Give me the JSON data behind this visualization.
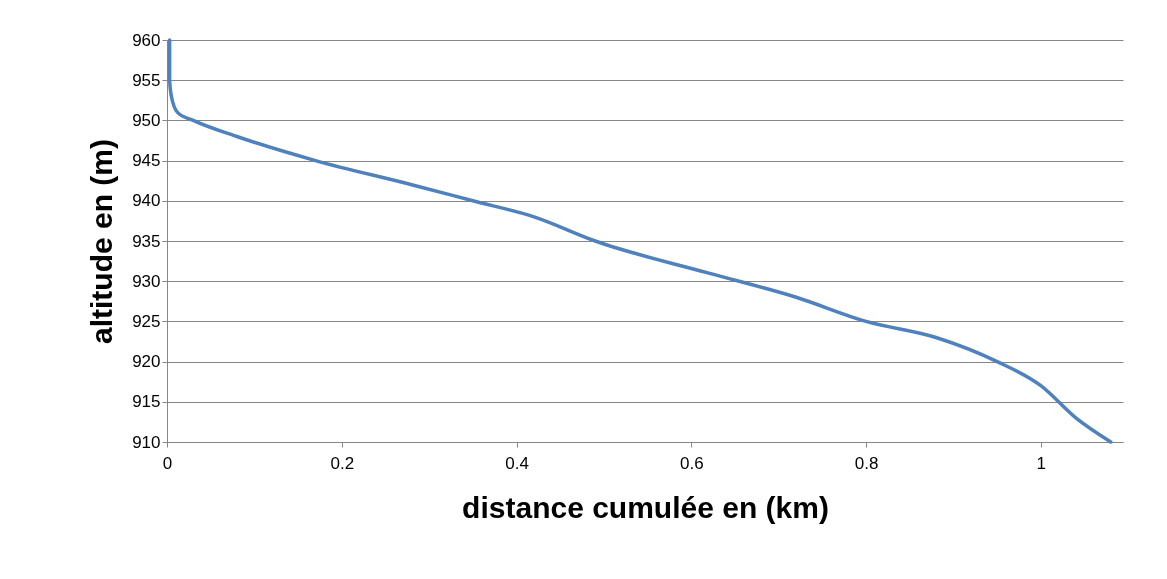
{
  "chart_data": {
    "type": "line",
    "xlabel": "distance cumulée en (km)",
    "ylabel": "altitude en (m)",
    "x": [
      0.003,
      0.003,
      0.005,
      0.012,
      0.03,
      0.08,
      0.17,
      0.28,
      0.35,
      0.42,
      0.49,
      0.62,
      0.72,
      0.8,
      0.88,
      0.95,
      1.0,
      1.04,
      1.08
    ],
    "series": [
      {
        "color": "#4f81bd",
        "values": [
          960,
          955,
          953,
          951,
          950,
          948,
          945,
          942,
          940,
          938,
          935,
          931,
          928,
          925,
          923,
          920,
          917,
          913,
          910
        ]
      }
    ],
    "xlim": [
      0,
      1.094
    ],
    "xticks": [
      0,
      0.2,
      0.4,
      0.6,
      0.8,
      1
    ],
    "ylim": [
      910,
      960
    ],
    "yticks": [
      910,
      915,
      920,
      925,
      930,
      935,
      940,
      945,
      950,
      955,
      960
    ],
    "grid": "y",
    "marker": "none",
    "line_style": "solid"
  }
}
